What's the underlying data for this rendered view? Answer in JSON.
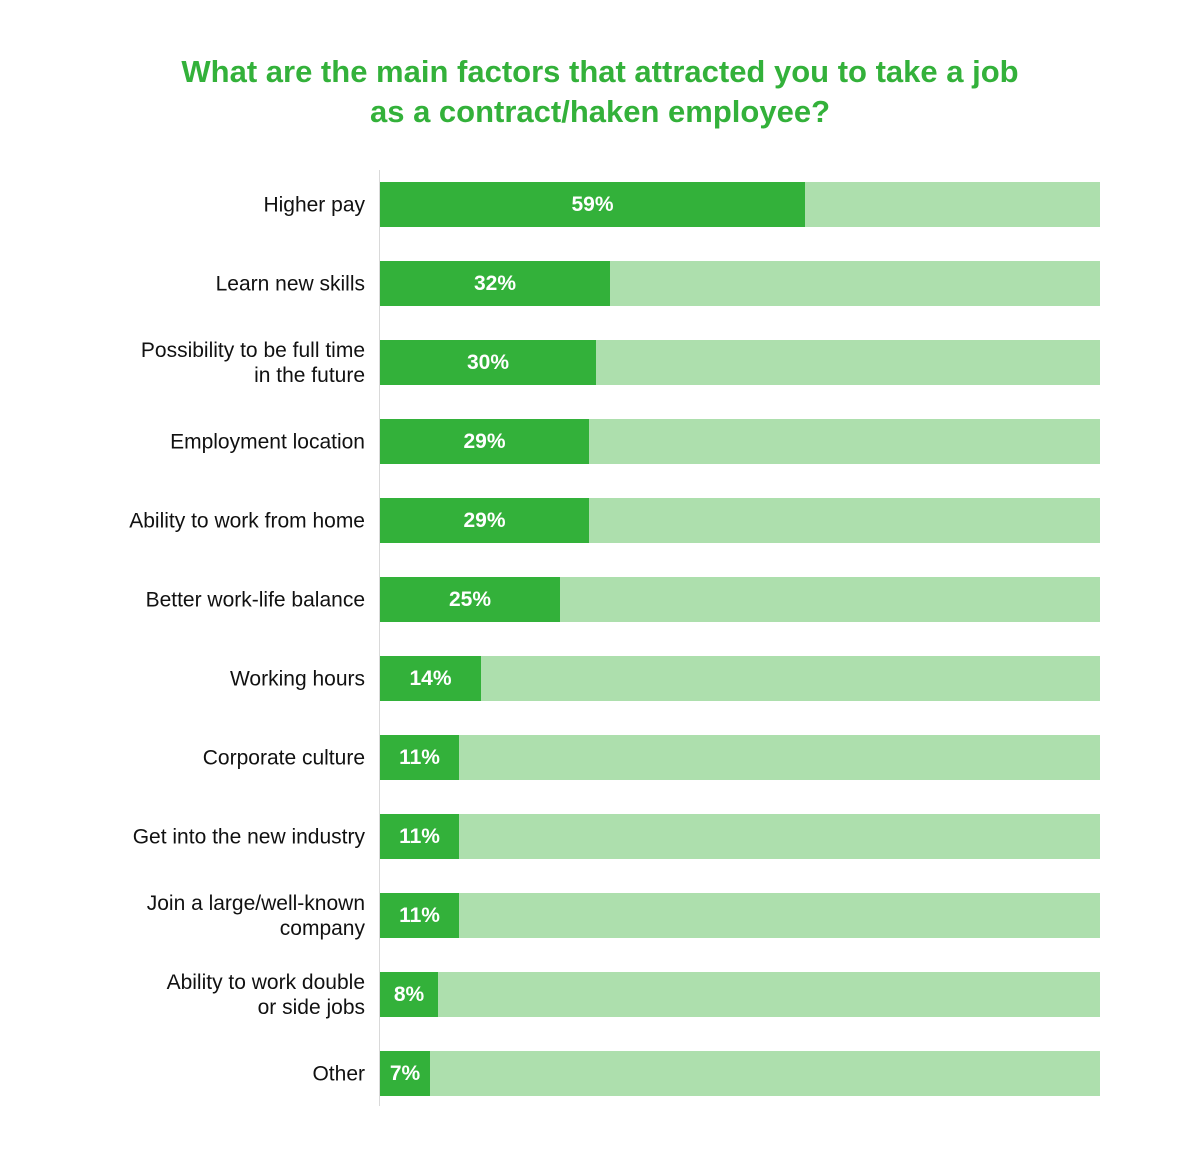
{
  "colors": {
    "title": "#33b13a",
    "bar_fill": "#33b13a",
    "bar_track": "#addfad",
    "axis": "#d9d9d9",
    "label_text": "#111111",
    "value_text": "#ffffff"
  },
  "chart_data": {
    "type": "bar",
    "orientation": "horizontal",
    "title": "What are the main factors that attracted you to take a job\nas a contract/haken employee?",
    "xlim": [
      0,
      100
    ],
    "grid": false,
    "categories": [
      "Higher pay",
      "Learn new skills",
      "Possibility to be full time\nin the future",
      "Employment location",
      "Ability to work from home",
      "Better work-life balance",
      "Working hours",
      "Corporate culture",
      "Get into the new industry",
      "Join a large/well-known\ncompany",
      "Ability to work double\nor side jobs",
      "Other"
    ],
    "values": [
      59,
      32,
      30,
      29,
      29,
      25,
      14,
      11,
      11,
      11,
      8,
      7
    ],
    "data_labels": [
      "59%",
      "32%",
      "30%",
      "29%",
      "29%",
      "25%",
      "14%",
      "11%",
      "11%",
      "11%",
      "8%",
      "7%"
    ]
  }
}
